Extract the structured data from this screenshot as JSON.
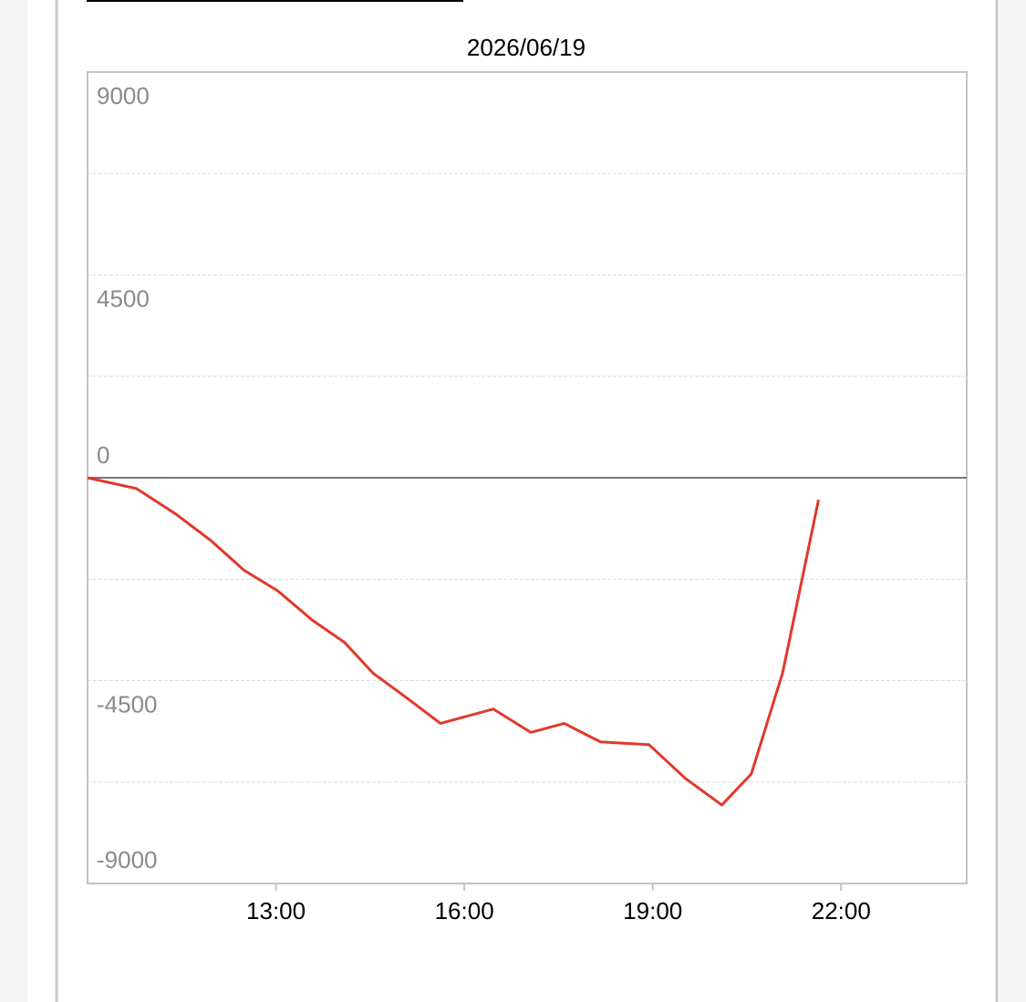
{
  "chart_data": {
    "type": "line",
    "title": "2026/06/19",
    "x": [
      10.0,
      10.78,
      11.41,
      11.97,
      12.49,
      13.03,
      13.58,
      14.09,
      14.55,
      15.07,
      15.62,
      16.46,
      17.06,
      17.59,
      18.17,
      18.94,
      19.52,
      20.1,
      20.57,
      21.07,
      21.64
    ],
    "series": [
      {
        "color": "#e0392b",
        "values": [
          0,
          -240,
          -810,
          -1400,
          -2050,
          -2510,
          -3160,
          -3650,
          -4340,
          -4870,
          -5450,
          -5130,
          -5650,
          -5450,
          -5860,
          -5920,
          -6670,
          -7260,
          -6570,
          -4320,
          -490
        ]
      }
    ],
    "xlim": [
      10,
      24
    ],
    "xticks": [
      {
        "value": 13,
        "label": "13:00"
      },
      {
        "value": 16,
        "label": "16:00"
      },
      {
        "value": 19,
        "label": "19:00"
      },
      {
        "value": 22,
        "label": "22:00"
      }
    ],
    "ylim": [
      -9000,
      9000
    ],
    "yticks": [
      -9000,
      -4500,
      0,
      4500,
      9000
    ],
    "minor_yticks": [
      -6750,
      -2250,
      2250,
      6750
    ],
    "grid": true
  }
}
